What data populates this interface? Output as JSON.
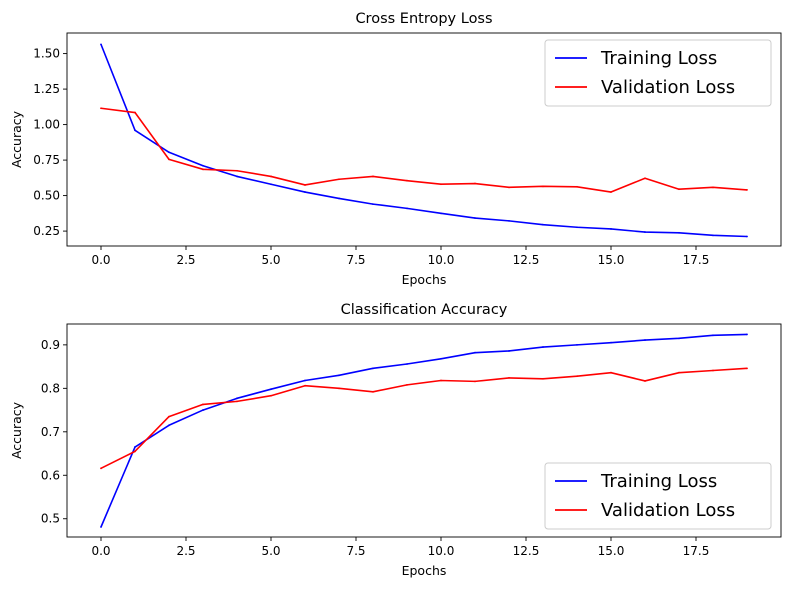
{
  "chart_data": [
    {
      "type": "line",
      "title": "Cross Entropy Loss",
      "xlabel": "Epochs",
      "ylabel": "Accuracy",
      "xlim": [
        -1,
        20
      ],
      "ylim": [
        0.145,
        1.645
      ],
      "xticks": [
        0.0,
        2.5,
        5.0,
        7.5,
        10.0,
        12.5,
        15.0,
        17.5
      ],
      "xtick_labels": [
        "0.0",
        "2.5",
        "5.0",
        "7.5",
        "10.0",
        "12.5",
        "15.0",
        "17.5"
      ],
      "yticks": [
        0.25,
        0.5,
        0.75,
        1.0,
        1.25,
        1.5
      ],
      "ytick_labels": [
        "0.25",
        "0.50",
        "0.75",
        "1.00",
        "1.25",
        "1.50"
      ],
      "legend": "top-right",
      "grid": false,
      "x": [
        0,
        1,
        2,
        3,
        4,
        5,
        6,
        7,
        8,
        9,
        10,
        11,
        12,
        13,
        14,
        15,
        16,
        17,
        18,
        19
      ],
      "series": [
        {
          "name": "Training Loss",
          "color": "#0000ff",
          "values": [
            1.565,
            0.96,
            0.805,
            0.71,
            0.635,
            0.58,
            0.525,
            0.48,
            0.44,
            0.41,
            0.375,
            0.342,
            0.322,
            0.295,
            0.277,
            0.265,
            0.243,
            0.238,
            0.22,
            0.212
          ]
        },
        {
          "name": "Validation Loss",
          "color": "#ff0000",
          "values": [
            1.115,
            1.085,
            0.755,
            0.685,
            0.675,
            0.635,
            0.575,
            0.615,
            0.635,
            0.605,
            0.58,
            0.585,
            0.558,
            0.565,
            0.562,
            0.525,
            0.622,
            0.545,
            0.558,
            0.54
          ]
        }
      ]
    },
    {
      "type": "line",
      "title": "Classification Accuracy",
      "xlabel": "Epochs",
      "ylabel": "Accuracy",
      "xlim": [
        -1,
        20
      ],
      "ylim": [
        0.458,
        0.948
      ],
      "xticks": [
        0.0,
        2.5,
        5.0,
        7.5,
        10.0,
        12.5,
        15.0,
        17.5
      ],
      "xtick_labels": [
        "0.0",
        "2.5",
        "5.0",
        "7.5",
        "10.0",
        "12.5",
        "15.0",
        "17.5"
      ],
      "yticks": [
        0.5,
        0.6,
        0.7,
        0.8,
        0.9
      ],
      "ytick_labels": [
        "0.5",
        "0.6",
        "0.7",
        "0.8",
        "0.9"
      ],
      "legend": "bottom-right",
      "grid": false,
      "x": [
        0,
        1,
        2,
        3,
        4,
        5,
        6,
        7,
        8,
        9,
        10,
        11,
        12,
        13,
        14,
        15,
        16,
        17,
        18,
        19
      ],
      "series": [
        {
          "name": "Training Loss",
          "color": "#0000ff",
          "values": [
            0.481,
            0.665,
            0.715,
            0.75,
            0.777,
            0.798,
            0.818,
            0.83,
            0.846,
            0.856,
            0.868,
            0.882,
            0.886,
            0.895,
            0.9,
            0.905,
            0.911,
            0.915,
            0.922,
            0.924
          ]
        },
        {
          "name": "Validation Loss",
          "color": "#ff0000",
          "values": [
            0.616,
            0.655,
            0.735,
            0.763,
            0.77,
            0.783,
            0.806,
            0.8,
            0.792,
            0.808,
            0.818,
            0.816,
            0.824,
            0.822,
            0.828,
            0.836,
            0.817,
            0.836,
            0.841,
            0.846
          ]
        }
      ]
    }
  ]
}
